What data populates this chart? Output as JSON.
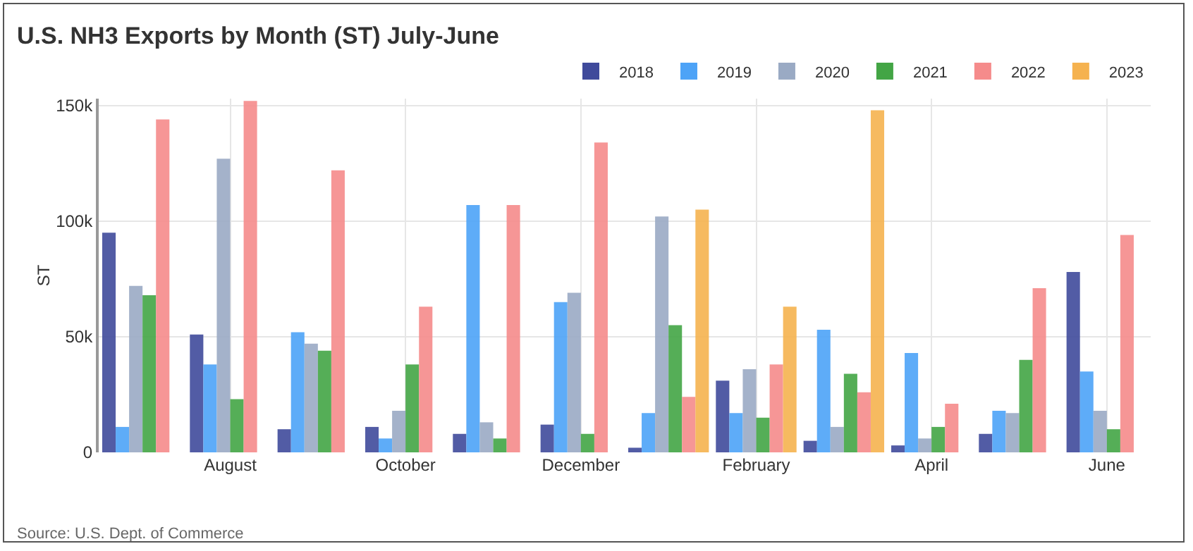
{
  "chart_data": {
    "type": "bar",
    "title": "U.S. NH3 Exports by Month (ST) July-June",
    "ylabel": "ST",
    "categories": [
      null,
      "August",
      null,
      "October",
      null,
      "December",
      null,
      "February",
      null,
      "April",
      null,
      "June"
    ],
    "series": [
      {
        "name": "2018",
        "color": "#3f4a9b",
        "values": [
          95000,
          51000,
          10000,
          11000,
          8000,
          12000,
          2000,
          31000,
          5000,
          3000,
          8000,
          78000
        ]
      },
      {
        "name": "2019",
        "color": "#4da3f7",
        "values": [
          11000,
          38000,
          52000,
          6000,
          107000,
          65000,
          17000,
          17000,
          53000,
          43000,
          18000,
          35000
        ]
      },
      {
        "name": "2020",
        "color": "#9aaac4",
        "values": [
          72000,
          127000,
          47000,
          18000,
          13000,
          69000,
          102000,
          36000,
          11000,
          6000,
          17000,
          18000
        ]
      },
      {
        "name": "2021",
        "color": "#43a545",
        "values": [
          68000,
          23000,
          44000,
          38000,
          6000,
          8000,
          55000,
          15000,
          34000,
          11000,
          40000,
          10000
        ]
      },
      {
        "name": "2022",
        "color": "#f58b8b",
        "values": [
          144000,
          152000,
          122000,
          63000,
          107000,
          134000,
          24000,
          38000,
          26000,
          21000,
          71000,
          94000
        ]
      },
      {
        "name": "2023",
        "color": "#f5b24f",
        "values": [
          0,
          0,
          0,
          0,
          0,
          0,
          105000,
          63000,
          148000,
          0,
          0,
          0
        ]
      }
    ],
    "ylim": [
      0,
      153000
    ],
    "yticks": [
      0,
      {
        "value": 50000,
        "label": "50k"
      },
      {
        "value": 100000,
        "label": "100k"
      },
      {
        "value": 150000,
        "label": "150k"
      }
    ],
    "grid": true,
    "legend": "top right",
    "annotations": [
      "Source: U.S. Dept. of Commerce"
    ]
  }
}
